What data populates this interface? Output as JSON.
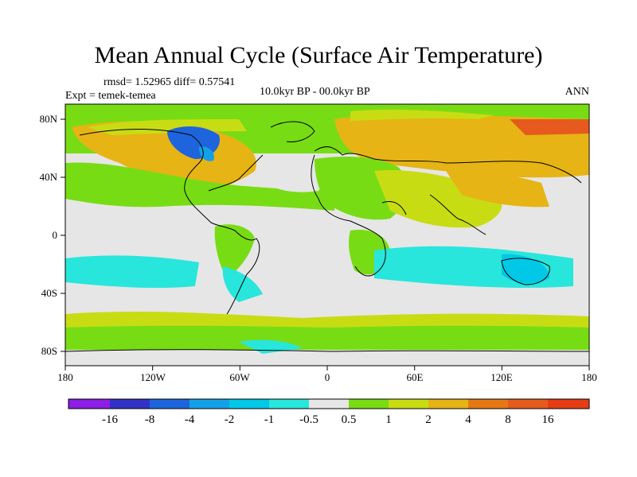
{
  "title": "Mean Annual Cycle (Surface Air Temperature)",
  "stats": "rmsd= 1.52965 diff= 0.57541",
  "experiment": "Expt = temek-temea",
  "period": "10.0kyr BP - 00.0kyr BP",
  "season": "ANN",
  "map": {
    "lat_ticks": [
      "80N",
      "40N",
      "0",
      "40S",
      "80S"
    ],
    "lon_ticks": [
      "180",
      "120W",
      "60W",
      "0",
      "60E",
      "120E",
      "180"
    ]
  },
  "colorbar": {
    "labels": [
      "-16",
      "-8",
      "-4",
      "-2",
      "-1",
      "-0.5",
      "0.5",
      "1",
      "2",
      "4",
      "8",
      "16"
    ],
    "colors": [
      "#8c1ee6",
      "#3232c8",
      "#1e64dc",
      "#14a0e6",
      "#00c8e6",
      "#28e6dc",
      "#e6e6e6",
      "#78dc14",
      "#c8dc14",
      "#e6b414",
      "#e67814",
      "#e65a1e",
      "#e63c14"
    ]
  },
  "palette": {
    "ocean_neutral": "#e6e6e6",
    "coast": "#000000"
  }
}
